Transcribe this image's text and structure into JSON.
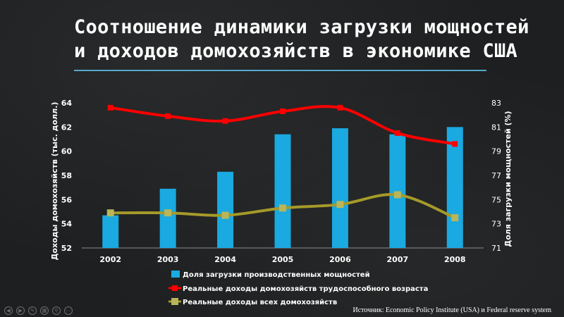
{
  "title": {
    "line1": "Соотношение динамики загрузки мощностей",
    "line2": "и доходов домохозяйств в экономике США"
  },
  "source": "Источник: Economic Policy Institute (USA) и Federal reserve system",
  "colors": {
    "bar": "#1aa9e0",
    "line_working_age": "#ff0000",
    "line_all": "#a59a2a",
    "marker_all": "#b9b65a",
    "accent_divider": "#5fc1ea",
    "background": "#1d1f20"
  },
  "chart_data": {
    "type": "bar+line",
    "categories": [
      "2002",
      "2003",
      "2004",
      "2005",
      "2006",
      "2007",
      "2008"
    ],
    "y_left": {
      "label": "Доходы домохозяйств (тыс. долл.)",
      "range": [
        52,
        64
      ],
      "ticks": [
        "52",
        "54",
        "56",
        "58",
        "60",
        "62",
        "64"
      ]
    },
    "y_right": {
      "label": "Доля загрузки мощностей (%)",
      "range": [
        71,
        83
      ],
      "ticks": [
        "71",
        "73",
        "75",
        "77",
        "79",
        "81",
        "83"
      ]
    },
    "series": [
      {
        "name": "Доля загрузки производственных мощностей",
        "type": "bar",
        "axis": "right",
        "values": [
          73.7,
          75.9,
          77.3,
          80.4,
          80.9,
          80.4,
          81.0
        ]
      },
      {
        "name": "Реальные доходы домохозяйств трудоспособного возраста",
        "type": "line",
        "axis": "left",
        "values": [
          63.6,
          62.9,
          62.5,
          63.3,
          63.6,
          61.5,
          60.6
        ]
      },
      {
        "name": "Реальные доходы всех домохозяйств",
        "type": "line",
        "axis": "left",
        "values": [
          54.9,
          54.9,
          54.7,
          55.3,
          55.6,
          56.4,
          54.5
        ]
      }
    ],
    "legend_position": "bottom",
    "grid": false
  }
}
